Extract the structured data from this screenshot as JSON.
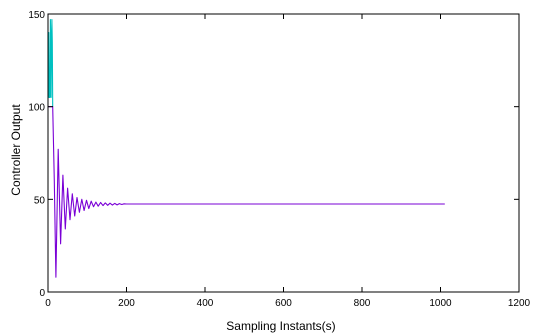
{
  "chart_data": {
    "type": "line",
    "title": "",
    "xlabel": "Sampling Instants(s)",
    "ylabel": "Controller Output",
    "xlim": [
      0,
      1200
    ],
    "ylim": [
      0,
      150
    ],
    "xticks": [
      0,
      200,
      400,
      600,
      800,
      1000,
      1200
    ],
    "yticks": [
      0,
      50,
      100,
      150
    ],
    "grid": false,
    "series": [
      {
        "color": "#00c0c0",
        "x": [
          0,
          1,
          2,
          3,
          4,
          5,
          6,
          7,
          8,
          9,
          10,
          11,
          12
        ],
        "y": [
          105,
          105,
          140,
          105,
          105,
          105,
          147,
          140,
          105,
          130,
          147,
          135,
          100
        ]
      },
      {
        "color": "#7a00d6",
        "x": [
          0,
          12,
          16,
          20,
          26,
          32,
          38,
          44,
          50,
          56,
          62,
          68,
          74,
          80,
          86,
          92,
          98,
          104,
          110,
          116,
          122,
          128,
          134,
          140,
          146,
          152,
          158,
          164,
          170,
          176,
          182,
          188,
          194,
          200,
          215,
          240,
          400,
          600,
          800,
          1010
        ],
        "y": [
          100,
          100,
          60,
          8,
          77,
          26,
          63,
          34,
          56,
          39,
          53,
          41,
          51,
          43,
          50,
          44,
          49.5,
          45,
          49,
          46,
          48.5,
          46.3,
          48.3,
          46.6,
          48.1,
          46.8,
          47.9,
          46.9,
          47.8,
          47,
          47.7,
          47.2,
          47.6,
          47.5,
          47.5,
          47.5,
          47.5,
          47.5,
          47.5,
          47.5
        ]
      }
    ]
  }
}
